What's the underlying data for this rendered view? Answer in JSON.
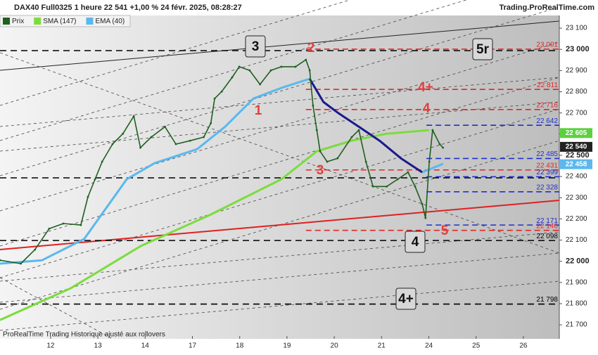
{
  "header": {
    "title": "DAX40 Full0325 1 heure 22 541 +1,00 % 24 févr. 2025, 08:28:27",
    "site": "Trading.ProRealTime.com"
  },
  "footer": "ProRealTime Trading  Historique ajusté aux rollovers",
  "chart_data": {
    "type": "line",
    "xlim": [
      -1.07,
      10.76
    ],
    "xticks": [
      {
        "value": 0,
        "label": "12"
      },
      {
        "value": 1,
        "label": "13"
      },
      {
        "value": 2,
        "label": "14"
      },
      {
        "value": 3,
        "label": "17"
      },
      {
        "value": 4,
        "label": "18"
      },
      {
        "value": 5,
        "label": "19"
      },
      {
        "value": 6,
        "label": "20"
      },
      {
        "value": 7,
        "label": "21"
      },
      {
        "value": 8,
        "label": "24"
      },
      {
        "value": 9,
        "label": "25"
      },
      {
        "value": 10,
        "label": "26"
      }
    ],
    "ylim": [
      21634,
      23160
    ],
    "yticks": [
      {
        "value": 21700,
        "label": "21 700"
      },
      {
        "value": 21800,
        "label": "21 800"
      },
      {
        "value": 21900,
        "label": "21 900"
      },
      {
        "value": 22000,
        "label": "22 000"
      },
      {
        "value": 22100,
        "label": "22 100"
      },
      {
        "value": 22200,
        "label": "22 200"
      },
      {
        "value": 22300,
        "label": "22 300"
      },
      {
        "value": 22400,
        "label": "22 400"
      },
      {
        "value": 22500,
        "label": "22 500"
      },
      {
        "value": 22600,
        "label": "22 600"
      },
      {
        "value": 22700,
        "label": "22 700"
      },
      {
        "value": 22800,
        "label": "22 800"
      },
      {
        "value": 22900,
        "label": "22 900"
      },
      {
        "value": 23000,
        "label": "23 000"
      },
      {
        "value": 23100,
        "label": "23 100"
      }
    ],
    "series": [
      {
        "name": "Prix",
        "color": "#1f5f1f",
        "x": [
          -1.07,
          -0.63,
          -0.33,
          -0.03,
          0.27,
          0.64,
          0.79,
          0.94,
          1.09,
          1.31,
          1.53,
          1.76,
          1.9,
          2.13,
          2.42,
          2.65,
          2.95,
          3.24,
          3.39,
          3.47,
          3.62,
          3.84,
          3.99,
          4.21,
          4.43,
          4.66,
          4.88,
          5.18,
          5.4,
          5.48,
          5.55,
          5.63,
          5.7,
          5.85,
          6.07,
          6.37,
          6.52,
          6.67,
          6.82,
          7.11,
          7.34,
          7.56,
          7.71,
          7.86,
          7.93,
          8.01,
          8.08,
          8.23,
          8.3
        ],
        "values": [
          22005,
          21989,
          22055,
          22154,
          22178,
          22171,
          22304,
          22387,
          22470,
          22553,
          22602,
          22685,
          22536,
          22586,
          22635,
          22553,
          22569,
          22586,
          22652,
          22768,
          22801,
          22868,
          22918,
          22901,
          22835,
          22901,
          22918,
          22918,
          22951,
          22901,
          22735,
          22619,
          22519,
          22470,
          22486,
          22586,
          22619,
          22470,
          22353,
          22353,
          22387,
          22420,
          22353,
          22270,
          22204,
          22470,
          22619,
          22553,
          22536
        ]
      },
      {
        "name": "SMA (147)",
        "color": "#7cdc3c",
        "x": [
          -1.07,
          0.42,
          1.9,
          3.39,
          4.88,
          5.63,
          6.37,
          7.11,
          8.01
        ],
        "values": [
          21723,
          21872,
          22071,
          22221,
          22387,
          22519,
          22569,
          22602,
          22619
        ]
      },
      {
        "name": "EMA (40)",
        "color": "#5ab8ee",
        "x": [
          -1.07,
          -0.18,
          0.71,
          1.61,
          2.2,
          3.1,
          3.69,
          4.29,
          4.88,
          5.48,
          6.5,
          7.86,
          8.3
        ],
        "values": [
          21989,
          22005,
          22105,
          22387,
          22463,
          22529,
          22635,
          22768,
          22818,
          22861,
          null,
          22420,
          22460
        ]
      },
      {
        "color": "#1a1a8c",
        "x": [
          5.48,
          5.77,
          6.07,
          6.52,
          6.96,
          7.41,
          7.86
        ],
        "values": [
          22861,
          22752,
          22702,
          22635,
          22569,
          22486,
          22420
        ]
      }
    ],
    "levels": [
      {
        "value": 23001,
        "label": "23 001",
        "color": "#e02828"
      },
      {
        "value": 22811,
        "label": "22 811",
        "color": "#e02828"
      },
      {
        "value": 22716,
        "label": "22 716",
        "color": "#e02828"
      },
      {
        "value": 22642,
        "label": "22 642",
        "color": "#1f2fd0"
      },
      {
        "value": 22485,
        "label": "22 485",
        "color": "#1f2fd0"
      },
      {
        "value": 22431,
        "label": "22 431",
        "color": "#e02828"
      },
      {
        "value": 22399,
        "label": "22 399",
        "color": "#1f2fd0"
      },
      {
        "value": 22328,
        "label": "22 328",
        "color": "#1f2fd0"
      },
      {
        "value": 22171,
        "label": "22 171",
        "color": "#1f2fd0"
      },
      {
        "value": 22146,
        "label": "22 146",
        "color": "#e02828"
      },
      {
        "value": 22098,
        "label": "22 098",
        "color": "#000000"
      },
      {
        "value": 21798,
        "label": "21 798",
        "color": "#000000"
      }
    ],
    "value_boxes": [
      {
        "value": 22605,
        "label": "22 605",
        "color": "#5cd040"
      },
      {
        "value": 22540,
        "label": "22 540",
        "color": "#222222"
      },
      {
        "value": 22458,
        "label": "22 458",
        "color": "#5ab8ee"
      }
    ],
    "annotations": [
      "3",
      "2",
      "5r",
      "4+",
      "4",
      "1",
      "3",
      "4",
      "5",
      "4+"
    ]
  }
}
